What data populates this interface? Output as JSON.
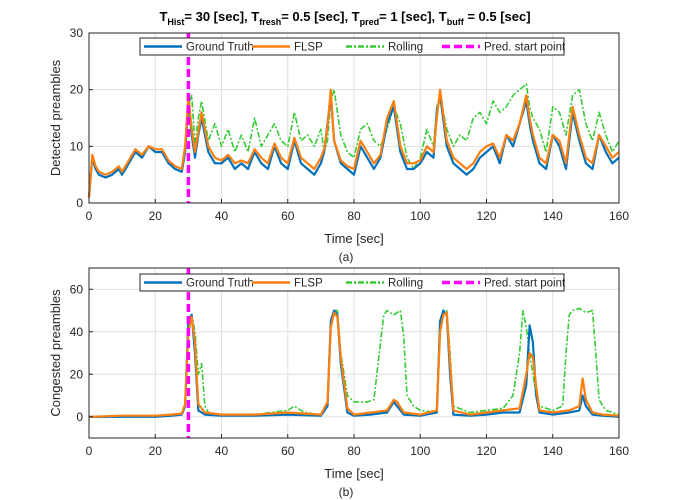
{
  "title": {
    "parts": [
      {
        "t": "T",
        "sub": false
      },
      {
        "t": "Hist",
        "sub": true
      },
      {
        "t": "= 30 [sec], T",
        "sub": false
      },
      {
        "t": "fresh",
        "sub": true
      },
      {
        "t": "= 0.5 [sec], T",
        "sub": false
      },
      {
        "t": "pred",
        "sub": true
      },
      {
        "t": "= 1 [sec], T",
        "sub": false
      },
      {
        "t": "buff",
        "sub": true
      },
      {
        "t": " = 0.5 [sec]",
        "sub": false
      }
    ]
  },
  "colors": {
    "ground_truth": "#0072BD",
    "flsp": "#FF7F0E",
    "rolling": "#33CC33",
    "pred_start": "#FF00FF",
    "grid": "#DFDFDF"
  },
  "chart_data": [
    {
      "type": "line",
      "panel_label": "(a)",
      "xlabel": "Time [sec]",
      "ylabel": "Detected preambles",
      "xlim": [
        0,
        160
      ],
      "ylim": [
        0,
        30
      ],
      "xticks": [
        0,
        20,
        40,
        60,
        80,
        100,
        120,
        140,
        160
      ],
      "yticks": [
        0,
        10,
        20,
        30
      ],
      "grid": true,
      "legend": {
        "position": "top-center",
        "entries": [
          "Ground Truth",
          "FLSP",
          "Rolling",
          "Pred. start point"
        ]
      },
      "pred_start_x": 30,
      "series": [
        {
          "name": "Ground Truth",
          "x": [
            0,
            1,
            2,
            3,
            5,
            7,
            9,
            10,
            12,
            14,
            16,
            18,
            20,
            22,
            24,
            26,
            28,
            29,
            30,
            31,
            32,
            33,
            34,
            36,
            38,
            40,
            42,
            44,
            46,
            48,
            50,
            52,
            54,
            56,
            58,
            60,
            62,
            64,
            66,
            68,
            70,
            71,
            72,
            73,
            74,
            76,
            78,
            80,
            82,
            84,
            86,
            88,
            90,
            92,
            94,
            96,
            98,
            100,
            102,
            104,
            105,
            106,
            108,
            110,
            112,
            114,
            116,
            118,
            120,
            122,
            124,
            126,
            128,
            130,
            132,
            133,
            134,
            136,
            138,
            140,
            142,
            144,
            146,
            148,
            150,
            152,
            154,
            156,
            158,
            160
          ],
          "values": [
            1,
            8,
            6,
            5,
            4.5,
            5,
            6,
            5,
            7,
            9,
            8,
            10,
            9,
            9,
            7,
            6,
            5.5,
            9,
            18,
            12,
            8,
            12,
            15,
            9,
            7,
            7,
            8,
            6,
            7,
            6,
            9,
            7,
            6,
            10,
            7,
            6,
            11,
            7,
            6,
            5,
            7,
            9,
            14,
            19,
            11,
            7,
            6,
            5,
            10,
            8,
            6,
            8,
            14,
            17,
            9,
            6,
            6,
            7,
            9,
            8,
            16,
            19,
            10,
            7,
            6,
            5,
            6,
            8,
            9,
            10,
            7,
            12,
            10,
            14,
            18,
            14,
            11,
            7,
            6,
            12,
            10,
            6,
            16,
            11,
            7,
            6,
            12,
            9,
            7,
            8
          ]
        },
        {
          "name": "FLSP",
          "x": [
            0,
            1,
            2,
            3,
            5,
            7,
            9,
            10,
            12,
            14,
            16,
            18,
            20,
            22,
            24,
            26,
            28,
            29,
            30,
            31,
            32,
            33,
            34,
            36,
            38,
            40,
            42,
            44,
            46,
            48,
            50,
            52,
            54,
            56,
            58,
            60,
            62,
            64,
            66,
            68,
            70,
            71,
            72,
            73,
            74,
            76,
            78,
            80,
            82,
            84,
            86,
            88,
            90,
            92,
            94,
            96,
            98,
            100,
            102,
            104,
            105,
            106,
            108,
            110,
            112,
            114,
            116,
            118,
            120,
            122,
            124,
            126,
            128,
            130,
            132,
            133,
            134,
            136,
            138,
            140,
            142,
            144,
            146,
            148,
            150,
            152,
            154,
            156,
            158,
            160
          ],
          "values": [
            1,
            8.5,
            6.5,
            5.5,
            5,
            5.5,
            6.5,
            5.5,
            7.5,
            9.5,
            8.5,
            10,
            9.5,
            9.5,
            7.5,
            6.5,
            6,
            10,
            19,
            13,
            9,
            12.5,
            16,
            10,
            8,
            7.5,
            8.5,
            7,
            7.5,
            7,
            9.5,
            8,
            7,
            10.5,
            8,
            7,
            11.5,
            8,
            7,
            6,
            8,
            9.5,
            13.5,
            20,
            11,
            7.5,
            6.5,
            6,
            11,
            9,
            7,
            8.5,
            15,
            18,
            10,
            7,
            7,
            7.5,
            10,
            9,
            15,
            20,
            11,
            8,
            7,
            6,
            7,
            9,
            10,
            10.5,
            8,
            12,
            11,
            14,
            19,
            15,
            12,
            8,
            7,
            12,
            11,
            7,
            17,
            12,
            8,
            7,
            12,
            10,
            8,
            9
          ]
        },
        {
          "name": "Rolling",
          "x": [
            0,
            1,
            2,
            3,
            5,
            7,
            9,
            10,
            12,
            14,
            16,
            18,
            20,
            22,
            24,
            26,
            28,
            29,
            30,
            31,
            32,
            33,
            34,
            36,
            38,
            40,
            42,
            44,
            46,
            48,
            50,
            52,
            54,
            56,
            58,
            60,
            62,
            64,
            66,
            68,
            70,
            71,
            72,
            73,
            74,
            76,
            78,
            80,
            82,
            84,
            86,
            88,
            90,
            92,
            94,
            96,
            98,
            100,
            102,
            104,
            105,
            106,
            108,
            110,
            112,
            114,
            116,
            118,
            120,
            122,
            124,
            126,
            128,
            130,
            132,
            133,
            134,
            136,
            138,
            140,
            142,
            144,
            146,
            148,
            150,
            152,
            154,
            156,
            158,
            160
          ],
          "values": [
            1,
            8,
            6,
            5,
            4.5,
            5,
            6,
            5,
            7,
            9,
            8,
            10,
            9,
            9,
            7,
            6,
            5.5,
            9,
            17,
            19,
            10,
            15,
            18,
            11,
            14,
            10,
            13,
            9,
            12,
            9,
            15,
            10,
            12,
            14,
            11,
            10,
            16,
            11,
            12,
            10,
            13,
            9,
            11,
            18,
            20,
            12,
            9,
            8,
            13,
            14,
            11,
            10,
            13,
            17,
            14,
            8,
            6,
            8,
            13,
            10,
            17,
            19,
            13,
            10,
            12,
            11,
            15,
            16,
            14,
            18,
            16,
            17,
            19,
            20,
            21,
            17,
            15,
            13,
            9,
            17,
            16,
            12,
            19,
            20,
            14,
            11,
            16,
            12,
            9,
            11
          ]
        }
      ]
    },
    {
      "type": "line",
      "panel_label": "(b)",
      "xlabel": "Time [sec]",
      "ylabel": "Congested preambles",
      "xlim": [
        0,
        160
      ],
      "ylim": [
        -10,
        70
      ],
      "xticks": [
        0,
        20,
        40,
        60,
        80,
        100,
        120,
        140,
        160
      ],
      "yticks": [
        0,
        20,
        40,
        60
      ],
      "grid": true,
      "legend": {
        "position": "top-center",
        "entries": [
          "Ground Truth",
          "FLSP",
          "Rolling",
          "Pred. start point"
        ]
      },
      "pred_start_x": 30,
      "series": [
        {
          "name": "Ground Truth",
          "x": [
            0,
            10,
            20,
            25,
            28,
            29,
            30,
            31,
            32,
            33,
            35,
            40,
            50,
            60,
            70,
            72,
            73,
            74,
            75,
            76,
            78,
            80,
            85,
            90,
            92,
            93,
            95,
            100,
            105,
            106,
            107,
            108,
            109,
            110,
            115,
            120,
            125,
            130,
            132,
            133,
            134,
            135,
            136,
            140,
            145,
            148,
            149,
            150,
            152,
            155,
            160
          ],
          "values": [
            0,
            0,
            0,
            0.5,
            1,
            5,
            45,
            48,
            30,
            3,
            1,
            0.5,
            0.5,
            1,
            0.5,
            5,
            45,
            50,
            48,
            25,
            2,
            0.5,
            1,
            2,
            7,
            5,
            1,
            0.5,
            2,
            45,
            50,
            48,
            20,
            1,
            0.5,
            1,
            2,
            2,
            15,
            43,
            35,
            10,
            2,
            1,
            2,
            3,
            10,
            5,
            1,
            0.5,
            0
          ]
        },
        {
          "name": "FLSP",
          "x": [
            0,
            10,
            20,
            25,
            28,
            29,
            30,
            31,
            32,
            33,
            35,
            40,
            50,
            60,
            70,
            72,
            73,
            74,
            75,
            76,
            78,
            80,
            85,
            90,
            92,
            93,
            95,
            100,
            105,
            106,
            107,
            108,
            109,
            110,
            115,
            120,
            125,
            130,
            132,
            133,
            134,
            135,
            136,
            140,
            145,
            148,
            149,
            150,
            152,
            155,
            160
          ],
          "values": [
            0,
            0.5,
            0.5,
            1,
            1.5,
            6,
            40,
            47,
            35,
            6,
            2,
            1,
            1,
            2,
            1,
            7,
            42,
            49,
            47,
            28,
            4,
            1,
            2,
            3,
            8,
            7,
            2,
            1,
            3,
            40,
            48,
            49,
            25,
            3,
            1,
            2,
            3,
            4,
            20,
            30,
            28,
            14,
            3,
            2,
            3,
            5,
            18,
            8,
            2,
            1,
            0.5
          ]
        },
        {
          "name": "Rolling",
          "x": [
            0,
            10,
            20,
            25,
            28,
            29,
            30,
            31,
            32,
            33,
            34,
            35,
            36,
            40,
            50,
            55,
            60,
            62,
            65,
            70,
            72,
            73,
            74,
            75,
            76,
            78,
            80,
            84,
            86,
            88,
            89,
            90,
            92,
            94,
            95,
            96,
            98,
            100,
            105,
            106,
            107,
            108,
            109,
            110,
            115,
            120,
            125,
            128,
            130,
            131,
            132,
            133,
            134,
            135,
            136,
            140,
            143,
            144,
            145,
            146,
            148,
            150,
            152,
            153,
            154,
            156,
            160
          ],
          "values": [
            0,
            0,
            0,
            0.5,
            1,
            5,
            46,
            48,
            40,
            20,
            25,
            5,
            2,
            1,
            1,
            2,
            3,
            5,
            2,
            1,
            5,
            45,
            50,
            50,
            30,
            10,
            7,
            7,
            8,
            35,
            48,
            50,
            48,
            50,
            38,
            10,
            5,
            3,
            2,
            45,
            50,
            50,
            30,
            5,
            2,
            3,
            4,
            10,
            30,
            50,
            42,
            30,
            20,
            10,
            5,
            3,
            5,
            30,
            48,
            50,
            51,
            49,
            50,
            30,
            8,
            3,
            1
          ]
        }
      ]
    }
  ]
}
